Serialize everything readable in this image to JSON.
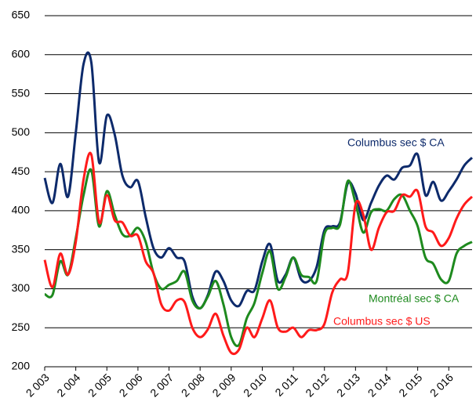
{
  "chart_data": {
    "type": "line",
    "x": [
      2003,
      2003.25,
      2003.5,
      2003.75,
      2004,
      2004.25,
      2004.5,
      2004.75,
      2005,
      2005.25,
      2005.5,
      2005.75,
      2006,
      2006.25,
      2006.5,
      2006.75,
      2007,
      2007.25,
      2007.5,
      2007.75,
      2008,
      2008.25,
      2008.5,
      2008.75,
      2009,
      2009.25,
      2009.5,
      2009.75,
      2010,
      2010.25,
      2010.5,
      2010.75,
      2011,
      2011.25,
      2011.5,
      2011.75,
      2012,
      2012.25,
      2012.5,
      2012.75,
      2013,
      2013.25,
      2013.5,
      2013.75,
      2014,
      2014.25,
      2014.5,
      2014.75,
      2015,
      2015.25,
      2015.5,
      2015.75,
      2016,
      2016.25,
      2016.5,
      2016.75
    ],
    "series": [
      {
        "name": "Columbus sec $ CA",
        "color": "#0d2a6b",
        "values": [
          442,
          410,
          460,
          418,
          500,
          588,
          590,
          462,
          522,
          498,
          445,
          430,
          438,
          392,
          352,
          340,
          352,
          340,
          335,
          290,
          275,
          292,
          322,
          310,
          285,
          278,
          297,
          298,
          335,
          357,
          310,
          318,
          340,
          312,
          310,
          328,
          375,
          380,
          385,
          435,
          422,
          388,
          410,
          432,
          445,
          440,
          455,
          458,
          472,
          420,
          437,
          413,
          425,
          440,
          458,
          468
        ]
      },
      {
        "name": "Montréal sec $ CA",
        "color": "#1e8a1e",
        "values": [
          293,
          292,
          335,
          318,
          365,
          420,
          452,
          380,
          425,
          395,
          370,
          368,
          378,
          360,
          320,
          300,
          305,
          310,
          322,
          285,
          275,
          290,
          310,
          280,
          238,
          228,
          262,
          282,
          320,
          348,
          300,
          315,
          340,
          318,
          315,
          310,
          370,
          378,
          382,
          438,
          410,
          372,
          398,
          402,
          400,
          415,
          420,
          400,
          380,
          340,
          332,
          312,
          310,
          345,
          355,
          360
        ]
      },
      {
        "name": "Columbus sec $ US",
        "color": "#ff1a1a",
        "values": [
          337,
          302,
          345,
          318,
          360,
          440,
          472,
          385,
          420,
          388,
          385,
          368,
          368,
          335,
          320,
          280,
          272,
          285,
          283,
          250,
          238,
          248,
          268,
          240,
          218,
          222,
          250,
          238,
          262,
          285,
          250,
          245,
          250,
          238,
          247,
          247,
          255,
          295,
          312,
          320,
          408,
          395,
          350,
          378,
          398,
          400,
          420,
          418,
          425,
          380,
          372,
          355,
          365,
          390,
          408,
          418
        ]
      }
    ],
    "xlim": [
      2003,
      2016.75
    ],
    "xticks": [
      {
        "value": 2003,
        "label": "2 003"
      },
      {
        "value": 2004,
        "label": "2 004"
      },
      {
        "value": 2005,
        "label": "2 005"
      },
      {
        "value": 2006,
        "label": "2 006"
      },
      {
        "value": 2007,
        "label": "2 007"
      },
      {
        "value": 2008,
        "label": "2 008"
      },
      {
        "value": 2009,
        "label": "2 009"
      },
      {
        "value": 2010,
        "label": "2 010"
      },
      {
        "value": 2011,
        "label": "2 011"
      },
      {
        "value": 2012,
        "label": "2 012"
      },
      {
        "value": 2013,
        "label": "2 013"
      },
      {
        "value": 2014,
        "label": "2 014"
      },
      {
        "value": 2015,
        "label": "2 015"
      },
      {
        "value": 2016,
        "label": "2 016"
      }
    ],
    "ylim": [
      200,
      650
    ],
    "yticks": [
      200,
      250,
      300,
      350,
      400,
      450,
      500,
      550,
      600,
      650
    ],
    "grid": true
  }
}
